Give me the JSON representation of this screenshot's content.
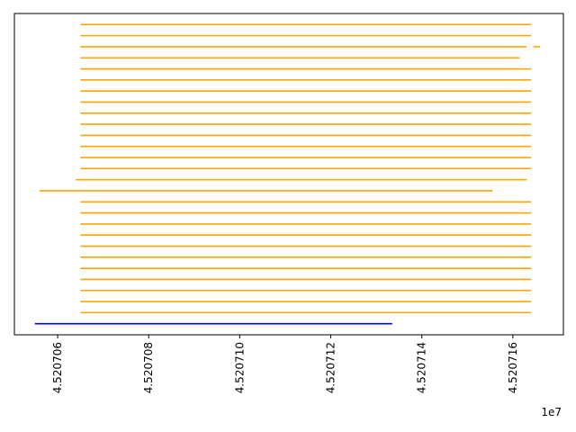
{
  "chart_data": {
    "type": "line",
    "title": "",
    "xlabel": "",
    "ylabel": "",
    "x_offset_text": "1e7",
    "xlim": [
      45207050.5,
      45207171.1
    ],
    "ylim": [
      -1,
      28
    ],
    "x_ticks": [
      45207060,
      45207080,
      45207100,
      45207120,
      45207140,
      45207160
    ],
    "x_tick_labels": [
      "4.520706",
      "4.520708",
      "4.520710",
      "4.520712",
      "4.520714",
      "4.520716"
    ],
    "y_ticks_visible": false,
    "grid": false,
    "legend": "none",
    "colors": {
      "highlight": "#0000ff",
      "others": "#ffa500"
    },
    "series": [
      {
        "color": "#0000ff",
        "y": 0,
        "x": [
          45207055.0,
          45207133.5
        ]
      },
      {
        "color": "#ffa500",
        "y": 1,
        "x": [
          45207065.0,
          45207164.0
        ]
      },
      {
        "color": "#ffa500",
        "y": 2,
        "x": [
          45207065.0,
          45207164.0
        ]
      },
      {
        "color": "#ffa500",
        "y": 3,
        "x": [
          45207065.0,
          45207164.0
        ]
      },
      {
        "color": "#ffa500",
        "y": 4,
        "x": [
          45207065.0,
          45207164.0
        ]
      },
      {
        "color": "#ffa500",
        "y": 5,
        "x": [
          45207065.0,
          45207164.0
        ]
      },
      {
        "color": "#ffa500",
        "y": 6,
        "x": [
          45207065.0,
          45207164.0
        ]
      },
      {
        "color": "#ffa500",
        "y": 7,
        "x": [
          45207065.0,
          45207164.0
        ]
      },
      {
        "color": "#ffa500",
        "y": 8,
        "x": [
          45207065.0,
          45207164.0
        ]
      },
      {
        "color": "#ffa500",
        "y": 9,
        "x": [
          45207065.0,
          45207164.0
        ]
      },
      {
        "color": "#ffa500",
        "y": 10,
        "x": [
          45207065.0,
          45207164.0
        ]
      },
      {
        "color": "#ffa500",
        "y": 11,
        "x": [
          45207065.0,
          45207164.0
        ]
      },
      {
        "color": "#ffa500",
        "y": 12,
        "x": [
          45207056.0,
          45207155.5
        ]
      },
      {
        "color": "#ffa500",
        "y": 13,
        "x": [
          45207064.0,
          45207163.0
        ]
      },
      {
        "color": "#ffa500",
        "y": 14,
        "x": [
          45207065.0,
          45207164.0
        ]
      },
      {
        "color": "#ffa500",
        "y": 15,
        "x": [
          45207065.0,
          45207164.0
        ]
      },
      {
        "color": "#ffa500",
        "y": 16,
        "x": [
          45207065.0,
          45207164.0
        ]
      },
      {
        "color": "#ffa500",
        "y": 17,
        "x": [
          45207065.0,
          45207164.0
        ]
      },
      {
        "color": "#ffa500",
        "y": 18,
        "x": [
          45207065.0,
          45207164.0
        ]
      },
      {
        "color": "#ffa500",
        "y": 19,
        "x": [
          45207065.0,
          45207164.0
        ]
      },
      {
        "color": "#ffa500",
        "y": 20,
        "x": [
          45207065.0,
          45207164.0
        ]
      },
      {
        "color": "#ffa500",
        "y": 21,
        "x": [
          45207065.0,
          45207164.0
        ]
      },
      {
        "color": "#ffa500",
        "y": 22,
        "x": [
          45207065.0,
          45207164.0
        ]
      },
      {
        "color": "#ffa500",
        "y": 23,
        "x": [
          45207065.0,
          45207164.0
        ]
      },
      {
        "color": "#ffa500",
        "y": 24,
        "x": [
          45207065.0,
          45207161.5
        ]
      },
      {
        "color": "#ffa500",
        "y": 25,
        "x": [
          45207065.0,
          45207163.0
        ]
      },
      {
        "color": "#ffa500",
        "y": 25,
        "x": [
          45207164.5,
          45207166.0
        ]
      },
      {
        "color": "#ffa500",
        "y": 26,
        "x": [
          45207065.0,
          45207164.0
        ]
      },
      {
        "color": "#ffa500",
        "y": 27,
        "x": [
          45207065.0,
          45207164.0
        ]
      }
    ]
  }
}
